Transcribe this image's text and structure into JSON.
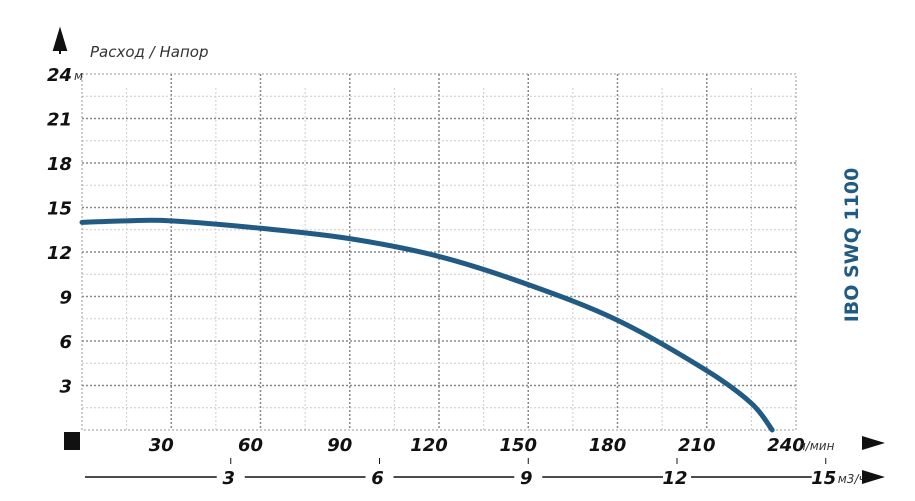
{
  "chart_data": {
    "type": "line",
    "title": "IBO SWQ 1100",
    "ylabel": "Расход / Напор",
    "y_unit": "м",
    "x_unit": "л/мин",
    "x2_unit": "м3/ч",
    "ylim": [
      0,
      24
    ],
    "xlim": [
      0,
      240
    ],
    "y_ticks": [
      "3",
      "6",
      "9",
      "12",
      "15",
      "18",
      "21",
      "24"
    ],
    "x_ticks": [
      "30",
      "60",
      "90",
      "120",
      "150",
      "180",
      "210",
      "240"
    ],
    "x2_ticks": [
      "3",
      "6",
      "9",
      "12",
      "15"
    ],
    "grid": true,
    "series": [
      {
        "x": [
          0,
          15,
          30,
          60,
          90,
          120,
          150,
          180,
          210,
          225,
          232
        ],
        "y": [
          14.0,
          14.1,
          14.1,
          13.6,
          12.9,
          11.7,
          9.8,
          7.4,
          4.0,
          1.8,
          0
        ]
      }
    ],
    "colors": {
      "curve": "#215b83",
      "title": "#215b83"
    }
  }
}
